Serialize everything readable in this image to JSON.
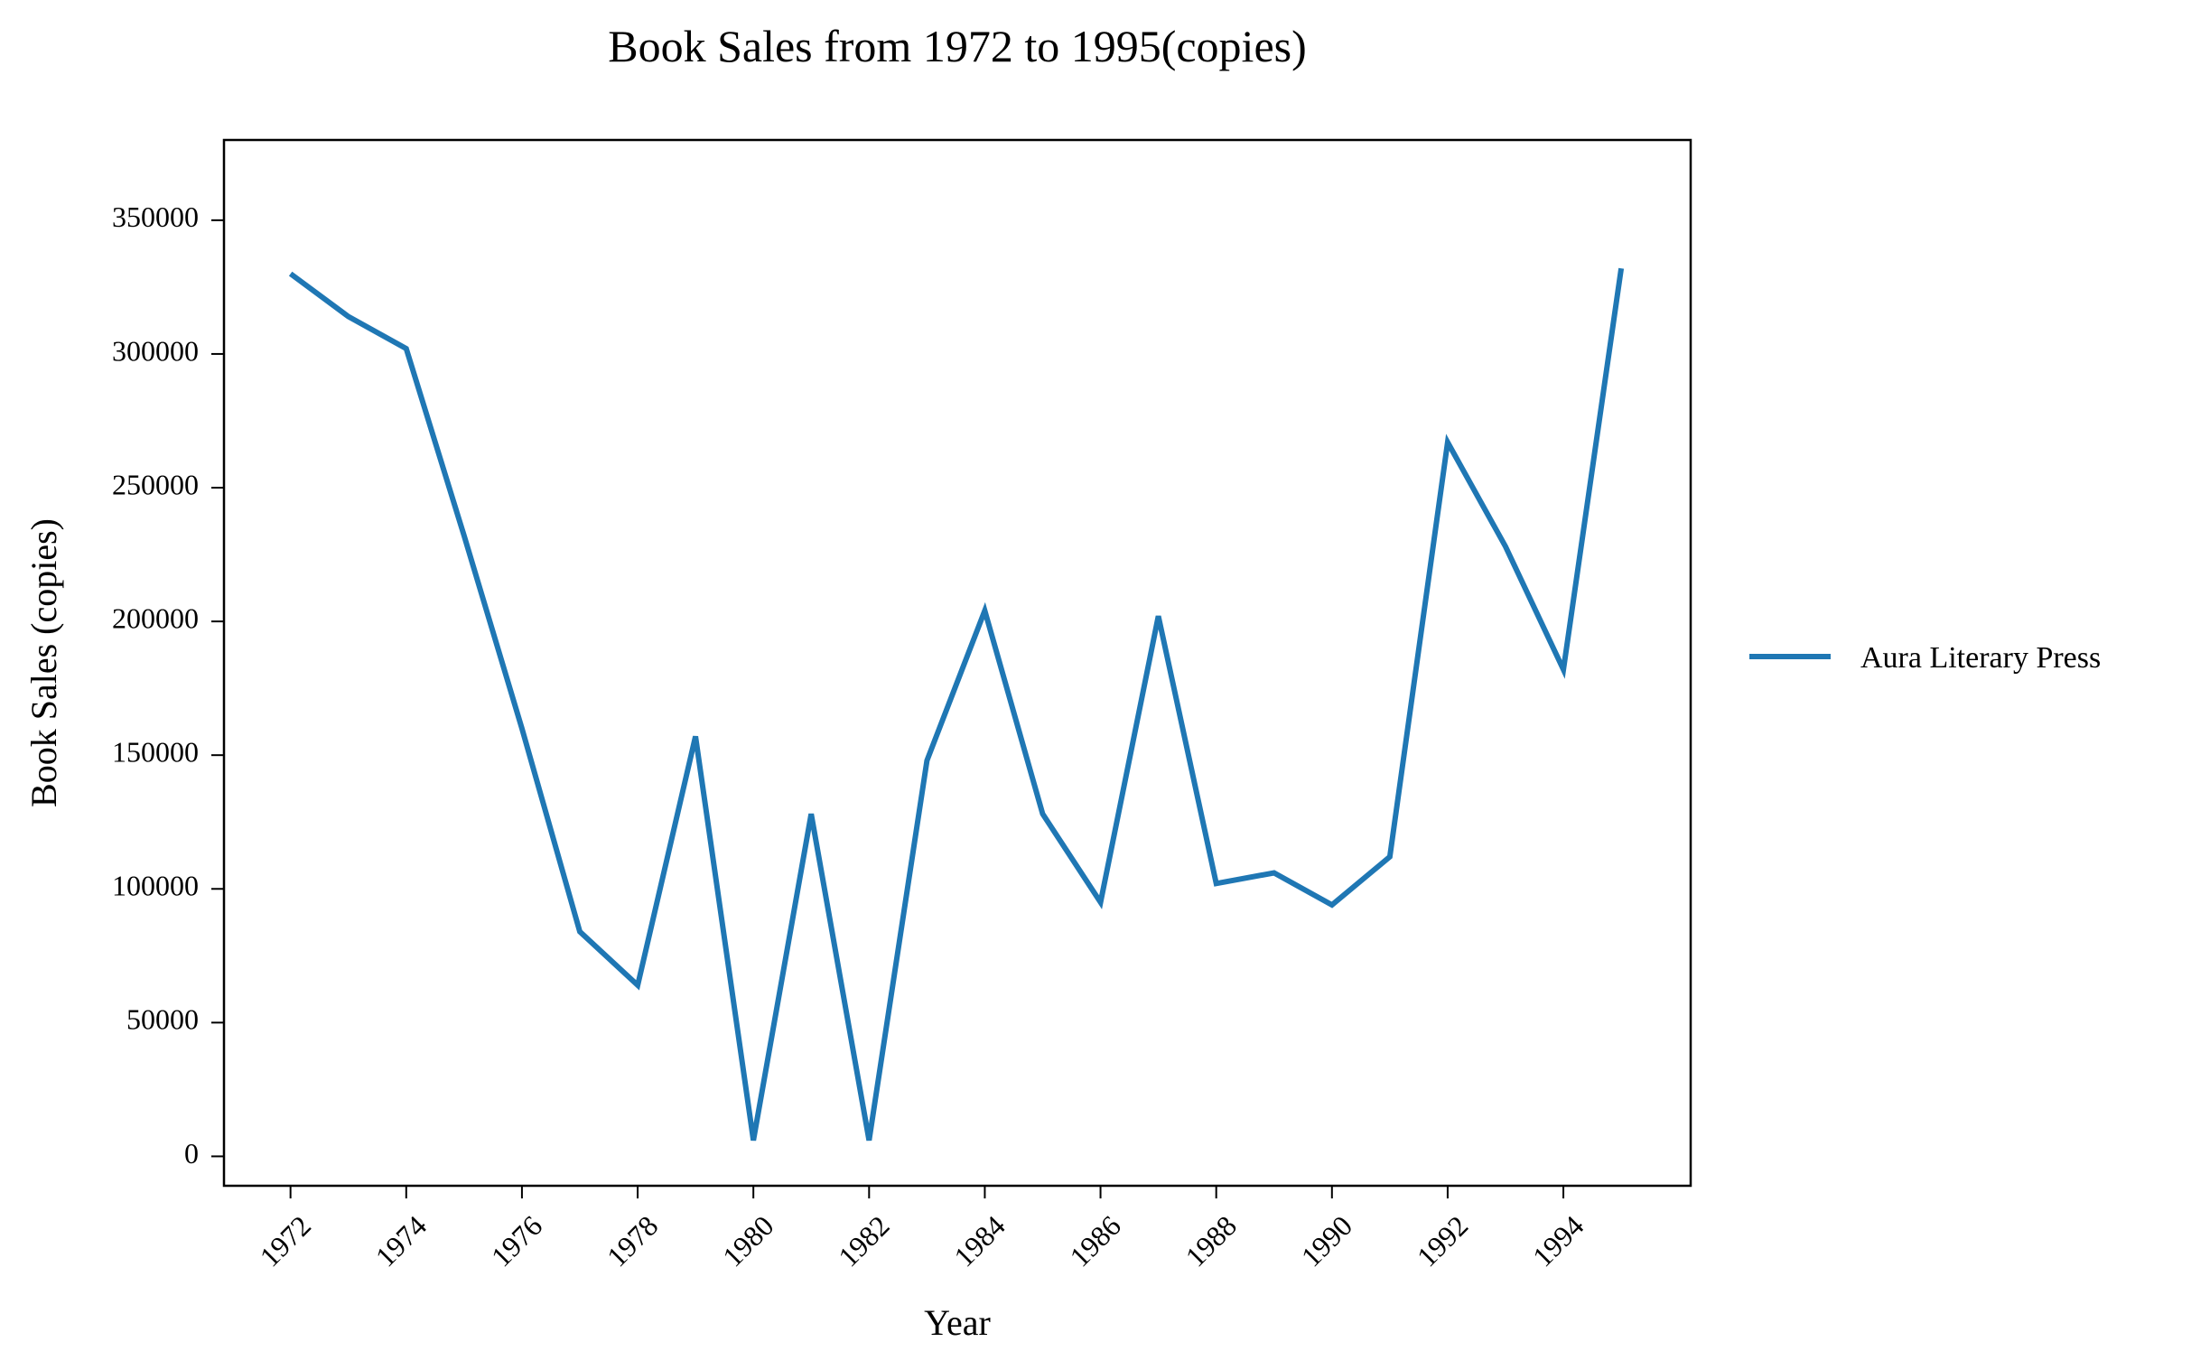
{
  "chart_data": {
    "type": "line",
    "title": "Book Sales from 1972 to 1995(copies)",
    "xlabel": "Year",
    "ylabel": "Book Sales (copies)",
    "x": [
      1972,
      1973,
      1974,
      1975,
      1976,
      1977,
      1978,
      1979,
      1980,
      1981,
      1982,
      1983,
      1984,
      1985,
      1986,
      1987,
      1988,
      1989,
      1990,
      1991,
      1992,
      1993,
      1994,
      1995
    ],
    "x_ticks": [
      1972,
      1974,
      1976,
      1978,
      1980,
      1982,
      1984,
      1986,
      1988,
      1990,
      1992,
      1994
    ],
    "x_tick_labels": [
      "1972",
      "1974",
      "1976",
      "1978",
      "1980",
      "1982",
      "1984",
      "1986",
      "1988",
      "1990",
      "1992",
      "1994"
    ],
    "y_ticks": [
      0,
      50000,
      100000,
      150000,
      200000,
      250000,
      300000,
      350000
    ],
    "y_tick_labels": [
      "0",
      "50000",
      "100000",
      "150000",
      "200000",
      "250000",
      "300000",
      "350000"
    ],
    "xlim": [
      1970.85,
      1996.2
    ],
    "ylim": [
      -11000,
      380000
    ],
    "grid": false,
    "legend_position": "outside-right",
    "series": [
      {
        "name": "Aura Literary Press",
        "color": "#1f77b4",
        "values": [
          330000,
          314000,
          302000,
          232000,
          160000,
          84000,
          64000,
          157000,
          6000,
          128000,
          6000,
          148000,
          204000,
          128000,
          95000,
          202000,
          102000,
          106000,
          94000,
          112000,
          267000,
          228000,
          182000,
          332000
        ]
      }
    ]
  }
}
